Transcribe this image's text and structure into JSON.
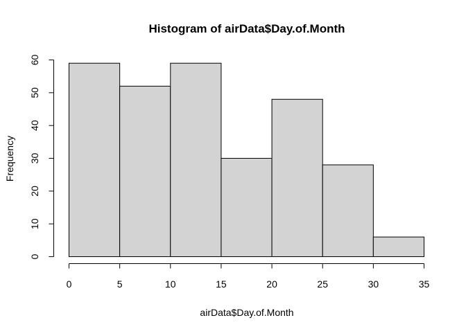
{
  "chart_data": {
    "type": "bar",
    "title": "Histogram of airData$Day.of.Month",
    "xlabel": "airData$Day.of.Month",
    "ylabel": "Frequency",
    "bins": [
      {
        "start": 0,
        "end": 5,
        "value": 59
      },
      {
        "start": 5,
        "end": 10,
        "value": 52
      },
      {
        "start": 10,
        "end": 15,
        "value": 59
      },
      {
        "start": 15,
        "end": 20,
        "value": 30
      },
      {
        "start": 20,
        "end": 25,
        "value": 48
      },
      {
        "start": 25,
        "end": 30,
        "value": 28
      },
      {
        "start": 30,
        "end": 35,
        "value": 6
      }
    ],
    "xlim": [
      0,
      35
    ],
    "ylim": [
      0,
      60
    ],
    "x_ticks": [
      0,
      5,
      10,
      15,
      20,
      25,
      30,
      35
    ],
    "y_ticks": [
      0,
      10,
      20,
      30,
      40,
      50,
      60
    ],
    "bar_color": "#d3d3d3",
    "border_color": "#000000",
    "grid": false,
    "legend": "none"
  }
}
